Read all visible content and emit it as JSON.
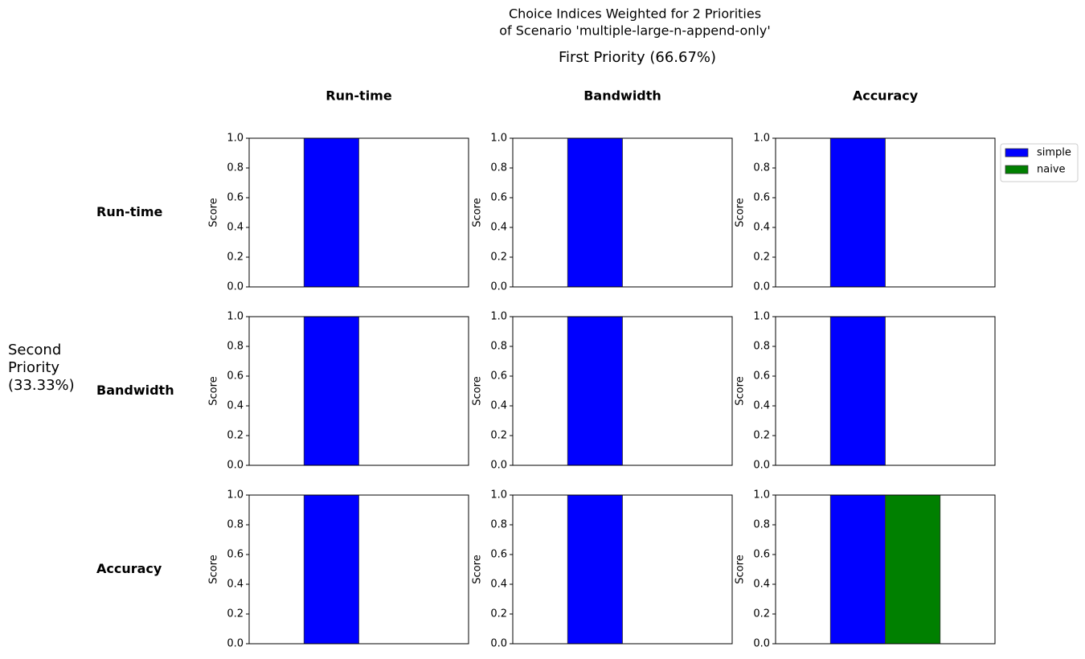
{
  "title": [
    "Choice Indices Weighted for 2 Priorities",
    "of Scenario 'multiple-large-n-append-only'"
  ],
  "first_priority": "First Priority (66.67%)",
  "second_priority": "Second Priority (33.33%)",
  "columns": [
    "Run-time",
    "Bandwidth",
    "Accuracy"
  ],
  "rows": [
    "Run-time",
    "Bandwidth",
    "Accuracy"
  ],
  "legend": [
    {
      "name": "simple",
      "color": "#0000ff"
    },
    {
      "name": "naive",
      "color": "#008000"
    }
  ],
  "chart_data": [
    {
      "type": "bar",
      "ylabel": "Score",
      "ylim": [
        0,
        1
      ],
      "yticks": [
        {
          "value": 0,
          "label": "0.0"
        },
        {
          "value": 0.2,
          "label": "0.2"
        },
        {
          "value": 0.4,
          "label": "0.4"
        },
        {
          "value": 0.6,
          "label": "0.6"
        },
        {
          "value": 0.8,
          "label": "0.8"
        },
        {
          "value": 1,
          "label": "1.0"
        }
      ],
      "series": [
        {
          "values": [
            1
          ]
        },
        {
          "values": [
            0
          ]
        }
      ]
    },
    {
      "type": "bar",
      "ylabel": "Score",
      "ylim": [
        0,
        1
      ],
      "yticks": [
        {
          "value": 0,
          "label": "0.0"
        },
        {
          "value": 0.2,
          "label": "0.2"
        },
        {
          "value": 0.4,
          "label": "0.4"
        },
        {
          "value": 0.6,
          "label": "0.6"
        },
        {
          "value": 0.8,
          "label": "0.8"
        },
        {
          "value": 1,
          "label": "1.0"
        }
      ],
      "series": [
        {
          "values": [
            1
          ]
        },
        {
          "values": [
            0
          ]
        }
      ]
    },
    {
      "type": "bar",
      "ylabel": "Score",
      "ylim": [
        0,
        1
      ],
      "yticks": [
        {
          "value": 0,
          "label": "0.0"
        },
        {
          "value": 0.2,
          "label": "0.2"
        },
        {
          "value": 0.4,
          "label": "0.4"
        },
        {
          "value": 0.6,
          "label": "0.6"
        },
        {
          "value": 0.8,
          "label": "0.8"
        },
        {
          "value": 1,
          "label": "1.0"
        }
      ],
      "series": [
        {
          "values": [
            1
          ]
        },
        {
          "values": [
            0
          ]
        }
      ]
    },
    {
      "type": "bar",
      "ylabel": "Score",
      "ylim": [
        0,
        1
      ],
      "yticks": [
        {
          "value": 0,
          "label": "0.0"
        },
        {
          "value": 0.2,
          "label": "0.2"
        },
        {
          "value": 0.4,
          "label": "0.4"
        },
        {
          "value": 0.6,
          "label": "0.6"
        },
        {
          "value": 0.8,
          "label": "0.8"
        },
        {
          "value": 1,
          "label": "1.0"
        }
      ],
      "series": [
        {
          "values": [
            1
          ]
        },
        {
          "values": [
            0
          ]
        }
      ]
    },
    {
      "type": "bar",
      "ylabel": "Score",
      "ylim": [
        0,
        1
      ],
      "yticks": [
        {
          "value": 0,
          "label": "0.0"
        },
        {
          "value": 0.2,
          "label": "0.2"
        },
        {
          "value": 0.4,
          "label": "0.4"
        },
        {
          "value": 0.6,
          "label": "0.6"
        },
        {
          "value": 0.8,
          "label": "0.8"
        },
        {
          "value": 1,
          "label": "1.0"
        }
      ],
      "series": [
        {
          "values": [
            1
          ]
        },
        {
          "values": [
            0
          ]
        }
      ]
    },
    {
      "type": "bar",
      "ylabel": "Score",
      "ylim": [
        0,
        1
      ],
      "yticks": [
        {
          "value": 0,
          "label": "0.0"
        },
        {
          "value": 0.2,
          "label": "0.2"
        },
        {
          "value": 0.4,
          "label": "0.4"
        },
        {
          "value": 0.6,
          "label": "0.6"
        },
        {
          "value": 0.8,
          "label": "0.8"
        },
        {
          "value": 1,
          "label": "1.0"
        }
      ],
      "series": [
        {
          "values": [
            1
          ]
        },
        {
          "values": [
            0
          ]
        }
      ]
    },
    {
      "type": "bar",
      "ylabel": "Score",
      "ylim": [
        0,
        1
      ],
      "yticks": [
        {
          "value": 0,
          "label": "0.0"
        },
        {
          "value": 0.2,
          "label": "0.2"
        },
        {
          "value": 0.4,
          "label": "0.4"
        },
        {
          "value": 0.6,
          "label": "0.6"
        },
        {
          "value": 0.8,
          "label": "0.8"
        },
        {
          "value": 1,
          "label": "1.0"
        }
      ],
      "series": [
        {
          "values": [
            1
          ]
        },
        {
          "values": [
            0
          ]
        }
      ]
    },
    {
      "type": "bar",
      "ylabel": "Score",
      "ylim": [
        0,
        1
      ],
      "yticks": [
        {
          "value": 0,
          "label": "0.0"
        },
        {
          "value": 0.2,
          "label": "0.2"
        },
        {
          "value": 0.4,
          "label": "0.4"
        },
        {
          "value": 0.6,
          "label": "0.6"
        },
        {
          "value": 0.8,
          "label": "0.8"
        },
        {
          "value": 1,
          "label": "1.0"
        }
      ],
      "series": [
        {
          "values": [
            1
          ]
        },
        {
          "values": [
            0
          ]
        }
      ]
    },
    {
      "type": "bar",
      "ylabel": "Score",
      "ylim": [
        0,
        1
      ],
      "yticks": [
        {
          "value": 0,
          "label": "0.0"
        },
        {
          "value": 0.2,
          "label": "0.2"
        },
        {
          "value": 0.4,
          "label": "0.4"
        },
        {
          "value": 0.6,
          "label": "0.6"
        },
        {
          "value": 0.8,
          "label": "0.8"
        },
        {
          "value": 1,
          "label": "1.0"
        }
      ],
      "series": [
        {
          "values": [
            1
          ]
        },
        {
          "values": [
            1
          ]
        }
      ]
    }
  ]
}
